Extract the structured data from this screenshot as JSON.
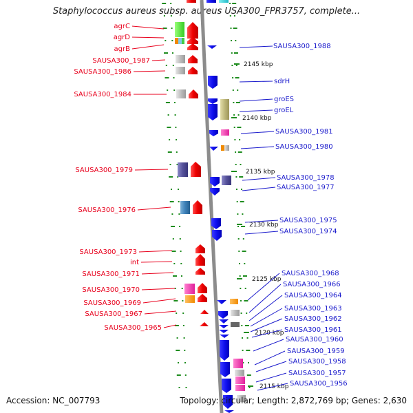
{
  "title": "Staphylococcus aureus subsp. aureus USA300_FPR3757, complete...",
  "footer": {
    "accession": "Accession: NC_007793",
    "summary": "Topology: circular; Length: 2,872,769 bp; Genes: 2,630"
  },
  "colors": {
    "left_label": "#e8001c",
    "right_label": "#1a1acc",
    "tick": "#1e8c1e",
    "backbone": "#888888"
  },
  "ruler": [
    "2145 kbp",
    "2140 kbp",
    "2135 kbp",
    "2130 kbp",
    "2125 kbp",
    "2120 kbp",
    "2115 kbp"
  ],
  "left_genes": [
    "agrC",
    "agrD",
    "agrB",
    "SAUSA300_1987",
    "SAUSA300_1986",
    "SAUSA300_1984",
    "SAUSA300_1979",
    "SAUSA300_1976",
    "SAUSA300_1973",
    "int",
    "SAUSA300_1971",
    "SAUSA300_1970",
    "SAUSA300_1969",
    "SAUSA300_1967",
    "SAUSA300_1965"
  ],
  "right_genes": [
    "SAUSA300_1988",
    "sdrH",
    "groES",
    "groEL",
    "SAUSA300_1981",
    "SAUSA300_1980",
    "SAUSA300_1978",
    "SAUSA300_1977",
    "SAUSA300_1975",
    "SAUSA300_1974",
    "SAUSA300_1968",
    "SAUSA300_1966",
    "SAUSA300_1964",
    "SAUSA300_1963",
    "SAUSA300_1962",
    "SAUSA300_1961",
    "SAUSA300_1960",
    "SAUSA300_1959",
    "SAUSA300_1958",
    "SAUSA300_1957",
    "SAUSA300_1956"
  ]
}
